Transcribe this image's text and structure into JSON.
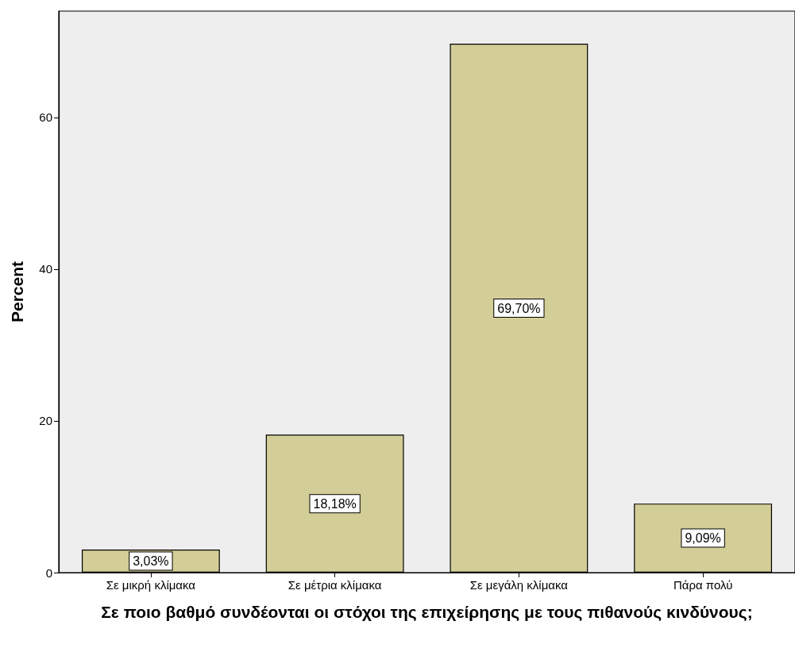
{
  "chart_data": {
    "type": "bar",
    "xlabel": "Σε ποιο βαθμό συνδέονται οι στόχοι της επιχείρησης με τους πιθανούς κινδύνους;",
    "ylabel": "Percent",
    "categories": [
      "Σε μικρή κλίμακα",
      "Σε μέτρια κλίμακα",
      "Σε μεγάλη κλίμακα",
      "Πάρα πολύ"
    ],
    "values": [
      3.03,
      18.18,
      69.7,
      9.09
    ],
    "value_labels": [
      "3,03%",
      "18,18%",
      "69,70%",
      "9,09%"
    ],
    "color": "#d3ce98",
    "ylim": [
      0,
      74
    ],
    "yticks": [
      0,
      20,
      40,
      60
    ],
    "grid": false
  }
}
